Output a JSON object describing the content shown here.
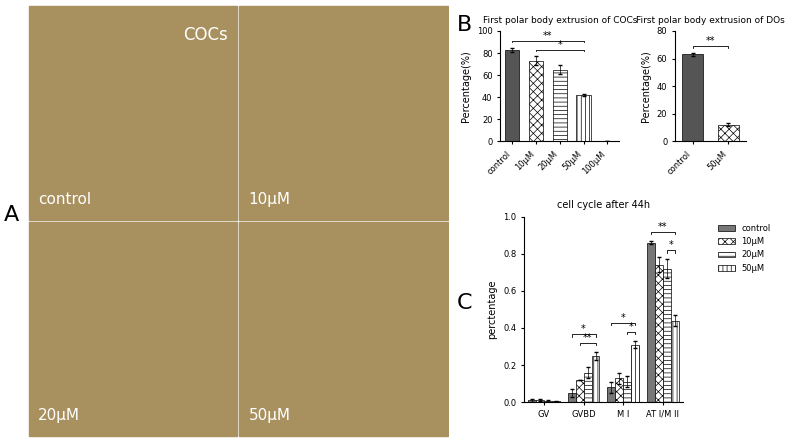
{
  "panel_labels": [
    "A",
    "B",
    "C"
  ],
  "image_panel": {
    "title": "COCs",
    "labels": [
      "control",
      "10μM",
      "20μM",
      "50μM"
    ]
  },
  "chart_data": [
    {
      "type": "bar",
      "title": "First polar body extrusion of COCs",
      "y_label": "Percentage(%)",
      "categories": [
        "control",
        "10μM",
        "20μM",
        "50μM",
        "100μM"
      ],
      "values": [
        83,
        73,
        65,
        42,
        0
      ],
      "errors": [
        2,
        4,
        4,
        1,
        0
      ],
      "colors": [
        "#555555",
        "#ffffff",
        "#ffffff",
        "#ffffff",
        "#ffffff"
      ],
      "ylim": [
        0,
        100
      ],
      "yticks": [
        0,
        20,
        40,
        60,
        80,
        100
      ],
      "significance": [
        {
          "from": "10μM",
          "to": "50μM",
          "label": "*"
        },
        {
          "from": "control",
          "to": "50μM",
          "label": "**"
        }
      ]
    },
    {
      "type": "bar",
      "title": "First polar body extrusion of DOs",
      "y_label": "Percentage(%)",
      "categories": [
        "control",
        "50μM"
      ],
      "values": [
        63,
        12
      ],
      "errors": [
        1,
        1
      ],
      "colors": [
        "#555555",
        "#ffffff"
      ],
      "ylim": [
        0,
        80
      ],
      "yticks": [
        0,
        20,
        40,
        60,
        80
      ],
      "significance": [
        {
          "from": "control",
          "to": "50μM",
          "label": "**"
        }
      ]
    },
    {
      "type": "bar",
      "title": "cell cycle after 44h",
      "y_label": "perctentage",
      "categories": [
        "GV",
        "GVBD",
        "M I",
        "AT I/M II"
      ],
      "series": [
        {
          "name": "control",
          "color": "#777777",
          "values": [
            0.01,
            0.05,
            0.08,
            0.86
          ],
          "errors": [
            0.01,
            0.02,
            0.03,
            0.01
          ]
        },
        {
          "name": "10μM",
          "color": "#ffffff",
          "values": [
            0.01,
            0.12,
            0.13,
            0.74
          ],
          "errors": [
            0.005,
            0.0,
            0.03,
            0.04
          ]
        },
        {
          "name": "20μM",
          "color": "#ffffff",
          "values": [
            0.005,
            0.16,
            0.11,
            0.72
          ],
          "errors": [
            0.005,
            0.03,
            0.03,
            0.05
          ]
        },
        {
          "name": "50μM",
          "color": "#ffffff",
          "values": [
            0.005,
            0.25,
            0.31,
            0.44
          ],
          "errors": [
            0.003,
            0.02,
            0.02,
            0.03
          ]
        }
      ],
      "ylim": [
        0.0,
        1.0
      ],
      "yticks": [
        0.0,
        0.2,
        0.4,
        0.6,
        0.8,
        1.0
      ],
      "legend": "upper right",
      "significance": [
        {
          "category": "GVBD",
          "from": "10μM",
          "to": "50μM",
          "label": "**"
        },
        {
          "category": "GVBD",
          "from": "control",
          "to": "50μM",
          "label": "*"
        },
        {
          "category": "M I",
          "from": "20μM",
          "to": "50μM",
          "label": "*"
        },
        {
          "category": "M I",
          "from": "control",
          "to": "50μM",
          "label": "*"
        },
        {
          "category": "AT I/M II",
          "from": "20μM",
          "to": "50μM",
          "label": "*"
        },
        {
          "category": "AT I/M II",
          "from": "control",
          "to": "50μM",
          "label": "**"
        }
      ]
    }
  ]
}
